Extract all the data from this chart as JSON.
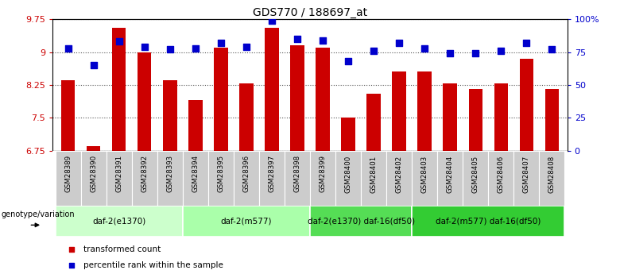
{
  "title": "GDS770 / 188697_at",
  "samples": [
    "GSM28389",
    "GSM28390",
    "GSM28391",
    "GSM28392",
    "GSM28393",
    "GSM28394",
    "GSM28395",
    "GSM28396",
    "GSM28397",
    "GSM28398",
    "GSM28399",
    "GSM28400",
    "GSM28401",
    "GSM28402",
    "GSM28403",
    "GSM28404",
    "GSM28405",
    "GSM28406",
    "GSM28407",
    "GSM28408"
  ],
  "transformed_counts": [
    8.35,
    6.85,
    9.55,
    9.0,
    8.35,
    7.9,
    9.1,
    8.28,
    9.55,
    9.15,
    9.1,
    7.5,
    8.05,
    8.55,
    8.55,
    8.28,
    8.15,
    8.28,
    8.85,
    8.15
  ],
  "percentile_ranks": [
    78,
    65,
    83,
    79,
    77,
    78,
    82,
    79,
    99,
    85,
    84,
    68,
    76,
    82,
    78,
    74,
    74,
    76,
    82,
    77
  ],
  "ylim_left": [
    6.75,
    9.75
  ],
  "ylim_right": [
    0,
    100
  ],
  "yticks_left": [
    6.75,
    7.5,
    8.25,
    9.0,
    9.75
  ],
  "ytick_labels_left": [
    "6.75",
    "7.5",
    "8.25",
    "9",
    "9.75"
  ],
  "yticks_right": [
    0,
    25,
    50,
    75,
    100
  ],
  "ytick_labels_right": [
    "0",
    "25",
    "50",
    "75",
    "100%"
  ],
  "bar_color": "#cc0000",
  "dot_color": "#0000cc",
  "bar_baseline": 6.75,
  "groups": [
    {
      "label": "daf-2(e1370)",
      "start": 0,
      "end": 5,
      "color": "#ccffcc"
    },
    {
      "label": "daf-2(m577)",
      "start": 5,
      "end": 10,
      "color": "#aaffaa"
    },
    {
      "label": "daf-2(e1370) daf-16(df50)",
      "start": 10,
      "end": 14,
      "color": "#55dd55"
    },
    {
      "label": "daf-2(m577) daf-16(df50)",
      "start": 14,
      "end": 20,
      "color": "#33cc33"
    }
  ],
  "genotype_label": "genotype/variation",
  "legend_items": [
    {
      "label": "transformed count",
      "color": "#cc0000"
    },
    {
      "label": "percentile rank within the sample",
      "color": "#0000cc"
    }
  ],
  "grid_color": "#555555",
  "sample_box_color": "#cccccc",
  "bar_width": 0.55,
  "dot_size": 28
}
